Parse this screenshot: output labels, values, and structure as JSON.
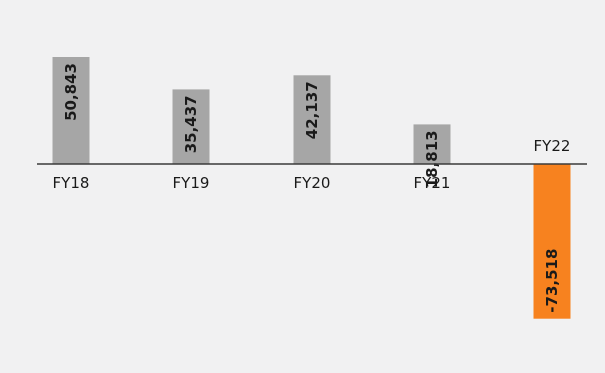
{
  "chart_data": {
    "type": "bar",
    "title": "",
    "xlabel": "",
    "ylabel": "",
    "categories": [
      "FY18",
      "FY19",
      "FY20",
      "FY21",
      "FY22"
    ],
    "values": [
      50843,
      35437,
      42137,
      18813,
      -73518
    ],
    "value_labels": [
      "50,843",
      "35,437",
      "42,137",
      "18,813",
      "-73,518"
    ],
    "ylim": [
      -73518,
      50843
    ],
    "grid": false,
    "legend": "none",
    "colors": {
      "positive": "#a6a6a6",
      "negative": "#f7821f",
      "axis": "#3a3a3a",
      "text": "#1a1a1a",
      "background": "#f1f1f2"
    }
  }
}
